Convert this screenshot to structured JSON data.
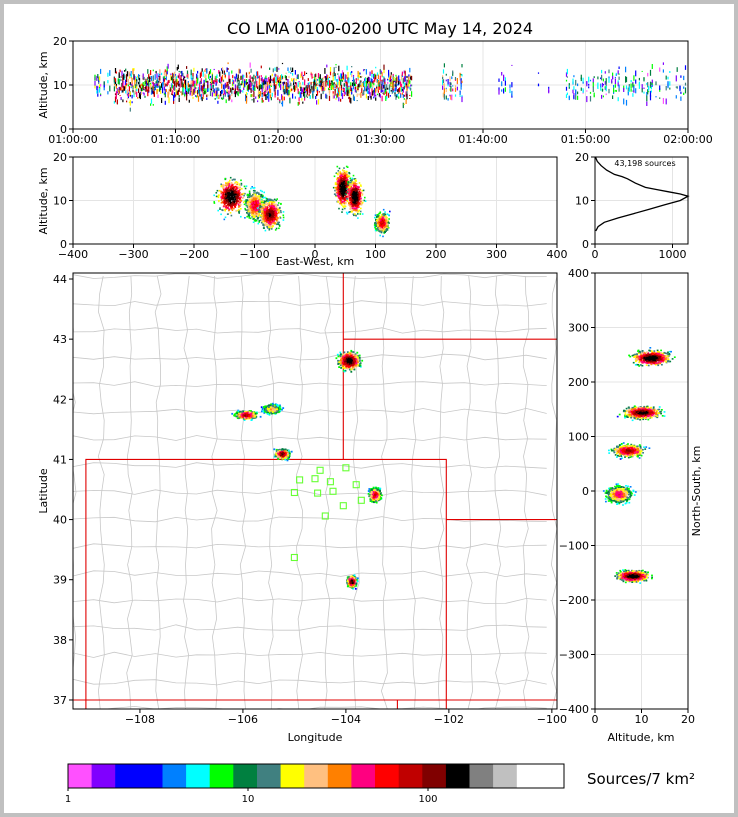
{
  "title": "CO LMA 0100-0200 UTC May 14, 2024",
  "colors": {
    "palette": [
      "#ff50ff",
      "#8000ff",
      "#0000ff",
      "#0080ff",
      "#00ffff",
      "#00ff00",
      "#008040",
      "#408080",
      "#ffff00",
      "#ffc080",
      "#ff8000",
      "#ff0080",
      "#ff0000",
      "#c00000",
      "#800000",
      "#000000",
      "#808080",
      "#c0c0c0",
      "#ffffff"
    ],
    "state_border": "#e00000",
    "county_border": "#c8c8c8",
    "station": "#66ff33",
    "grid": "#e4e4e4"
  },
  "chart_data": [
    {
      "type": "heatmap",
      "id": "time-altitude",
      "ylabel": "Altitude, km",
      "xlabel": "",
      "xlim": [
        "01:00:00",
        "02:00:00"
      ],
      "ylim": [
        0,
        20
      ],
      "x_ticks": [
        "01:00:00",
        "01:10:00",
        "01:20:00",
        "01:30:00",
        "01:40:00",
        "01:50:00",
        "02:00:00"
      ],
      "y_ticks": [
        0,
        10,
        20
      ],
      "activity_segments_min": [
        [
          2,
          4,
          0.5
        ],
        [
          4,
          33,
          1.0
        ],
        [
          36,
          38,
          0.7
        ],
        [
          41.5,
          43,
          0.3
        ],
        [
          45,
          47,
          0.15
        ],
        [
          48,
          60,
          0.45
        ]
      ]
    },
    {
      "type": "heatmap",
      "id": "east-west-altitude",
      "xlabel": "East-West, km",
      "ylabel": "Altitude, km",
      "xlim": [
        -400,
        400
      ],
      "ylim": [
        0,
        20
      ],
      "x_ticks": [
        -400,
        -300,
        -200,
        -100,
        0,
        100,
        200,
        300,
        400
      ],
      "y_ticks": [
        0,
        10,
        20
      ],
      "cells": [
        {
          "x": -140,
          "z": 11,
          "width_km": 20,
          "depth_km": 3.5,
          "peak": 1.0
        },
        {
          "x": -100,
          "z": 9,
          "width_km": 15,
          "depth_km": 3.0,
          "peak": 0.75
        },
        {
          "x": -75,
          "z": 7,
          "width_km": 16,
          "depth_km": 3.0,
          "peak": 0.9
        },
        {
          "x": 45,
          "z": 13,
          "width_km": 12,
          "depth_km": 4.0,
          "peak": 1.0
        },
        {
          "x": 65,
          "z": 11,
          "width_km": 12,
          "depth_km": 3.5,
          "peak": 1.0
        },
        {
          "x": 110,
          "z": 5,
          "width_km": 10,
          "depth_km": 2.0,
          "peak": 0.8
        }
      ]
    },
    {
      "type": "line",
      "id": "altitude-histogram",
      "annotation": "43,198 sources",
      "xlim": [
        0,
        1200
      ],
      "ylim": [
        0,
        20
      ],
      "x_ticks": [
        0,
        1000
      ],
      "y_ticks": [
        0,
        10,
        20
      ],
      "x": [
        5,
        30,
        80,
        150,
        250,
        350,
        420,
        520,
        650,
        800,
        950,
        1100,
        1200,
        1100,
        900,
        700,
        500,
        300,
        120,
        40,
        10
      ],
      "y": [
        20,
        19,
        18,
        17,
        16,
        15.5,
        15,
        14,
        13,
        12.5,
        12,
        11.5,
        11,
        10,
        9,
        8,
        7,
        6,
        5,
        4,
        3
      ]
    },
    {
      "type": "heatmap",
      "id": "plan-view",
      "xlabel": "Longitude",
      "ylabel": "Latitude",
      "xlim": [
        -109.3,
        -99.9
      ],
      "ylim": [
        36.85,
        44.1
      ],
      "x_ticks": [
        -108,
        -106,
        -104,
        -102,
        -100
      ],
      "y_ticks": [
        37,
        38,
        39,
        40,
        41,
        42,
        43,
        44
      ],
      "cells": [
        {
          "lon": -103.95,
          "lat": 42.65,
          "sx": 0.18,
          "sy": 0.13,
          "peak": 1.0
        },
        {
          "lon": -105.95,
          "lat": 41.75,
          "sx": 0.18,
          "sy": 0.06,
          "peak": 0.85
        },
        {
          "lon": -105.45,
          "lat": 41.85,
          "sx": 0.15,
          "sy": 0.07,
          "peak": 0.6
        },
        {
          "lon": -105.25,
          "lat": 41.1,
          "sx": 0.12,
          "sy": 0.07,
          "peak": 0.9
        },
        {
          "lon": -103.45,
          "lat": 40.42,
          "sx": 0.1,
          "sy": 0.1,
          "peak": 0.8
        },
        {
          "lon": -103.9,
          "lat": 38.98,
          "sx": 0.08,
          "sy": 0.08,
          "peak": 0.95
        }
      ],
      "stations": [
        [
          -104.5,
          40.82
        ],
        [
          -104.0,
          40.86
        ],
        [
          -104.9,
          40.66
        ],
        [
          -104.6,
          40.68
        ],
        [
          -104.3,
          40.63
        ],
        [
          -103.8,
          40.58
        ],
        [
          -105.0,
          40.45
        ],
        [
          -104.55,
          40.44
        ],
        [
          -104.25,
          40.47
        ],
        [
          -103.7,
          40.32
        ],
        [
          -104.05,
          40.23
        ],
        [
          -104.4,
          40.06
        ],
        [
          -105.0,
          39.37
        ]
      ]
    },
    {
      "type": "heatmap",
      "id": "altitude-north-south",
      "xlabel": "Altitude, km",
      "ylabel": "North-South, km",
      "xlim": [
        0,
        20
      ],
      "ylim": [
        -400,
        400
      ],
      "x_ticks": [
        0,
        10,
        20
      ],
      "y_ticks": [
        -400,
        -300,
        -200,
        -100,
        0,
        100,
        200,
        300,
        400
      ],
      "cells": [
        {
          "y": 245,
          "z": 12,
          "dy": 12,
          "dz": 3.5,
          "peak": 1.0
        },
        {
          "y": 145,
          "z": 10,
          "dy": 10,
          "dz": 3.5,
          "peak": 0.95
        },
        {
          "y": 75,
          "z": 7,
          "dy": 10,
          "dz": 3.0,
          "peak": 0.85
        },
        {
          "y": -5,
          "z": 5,
          "dy": 14,
          "dz": 2.5,
          "peak": 0.7
        },
        {
          "y": -155,
          "z": 8,
          "dy": 9,
          "dz": 3.0,
          "peak": 1.0
        }
      ]
    }
  ],
  "colorbar": {
    "label": "Sources/7 km²",
    "ticks": [
      "1",
      "10",
      "100"
    ]
  }
}
